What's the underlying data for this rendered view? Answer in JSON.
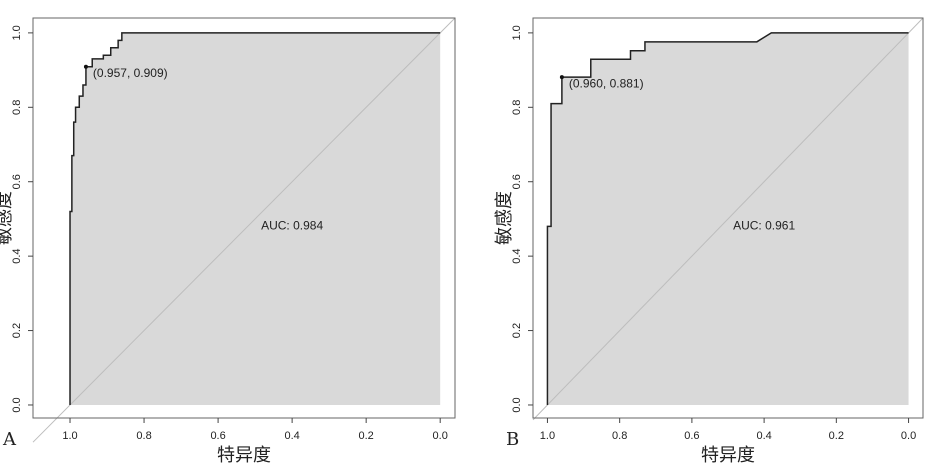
{
  "chart_data": [
    {
      "type": "roc",
      "panel": "A",
      "xlabel": "特异度",
      "ylabel": "敏感度",
      "xlim": [
        1.1,
        -0.04
      ],
      "ylim": [
        -0.035,
        1.04
      ],
      "xticks": [
        {
          "value": 1.0,
          "label": "1.0"
        },
        0.8,
        0.6,
        0.4,
        0.2,
        {
          "value": 0.0,
          "label": "0.0"
        }
      ],
      "yticks": [
        {
          "value": 0.0,
          "label": "0.0"
        },
        0.2,
        0.4,
        0.6,
        0.8,
        {
          "value": 1.0,
          "label": "1.0"
        }
      ],
      "x": [
        1,
        1,
        0.995,
        0.995,
        0.99,
        0.99,
        0.985,
        0.985,
        0.975,
        0.975,
        0.965,
        0.965,
        0.957,
        0.957,
        0.94,
        0.94,
        0.91,
        0.91,
        0.89,
        0.89,
        0.87,
        0.87,
        0.86,
        0.86,
        0
      ],
      "values": [
        0,
        0.52,
        0.52,
        0.67,
        0.67,
        0.76,
        0.76,
        0.8,
        0.8,
        0.83,
        0.83,
        0.86,
        0.86,
        0.909,
        0.909,
        0.93,
        0.93,
        0.94,
        0.94,
        0.96,
        0.96,
        0.98,
        0.98,
        1.0,
        1.0
      ],
      "color": "#222222",
      "fill_color": "#d9d9d9",
      "diagonal_color": "#bdbdbd",
      "threshold": {
        "x": 0.957,
        "y": 0.909,
        "label": "(0.957, 0.909)"
      },
      "auc_label": "AUC: 0.984"
    },
    {
      "type": "roc",
      "panel": "B",
      "xlabel": "特异度",
      "ylabel": "敏感度",
      "xlim": [
        1.04,
        -0.04
      ],
      "ylim": [
        -0.035,
        1.04
      ],
      "xticks": [
        {
          "value": 1.0,
          "label": "1.0"
        },
        0.8,
        0.6,
        0.4,
        0.2,
        {
          "value": 0.0,
          "label": "0.0"
        }
      ],
      "yticks": [
        {
          "value": 0.0,
          "label": "0.0"
        },
        0.2,
        0.4,
        0.6,
        0.8,
        {
          "value": 1.0,
          "label": "1.0"
        }
      ],
      "x": [
        1,
        1,
        0.99,
        0.99,
        0.96,
        0.96,
        0.88,
        0.88,
        0.77,
        0.77,
        0.73,
        0.73,
        0.42,
        0.38,
        0
      ],
      "values": [
        0,
        0.48,
        0.48,
        0.81,
        0.81,
        0.881,
        0.881,
        0.929,
        0.929,
        0.952,
        0.952,
        0.976,
        0.976,
        1.0,
        1.0
      ],
      "color": "#222222",
      "fill_color": "#d9d9d9",
      "diagonal_color": "#bdbdbd",
      "threshold": {
        "x": 0.96,
        "y": 0.881,
        "label": "(0.960, 0.881)"
      },
      "auc_label": "AUC: 0.961"
    }
  ]
}
